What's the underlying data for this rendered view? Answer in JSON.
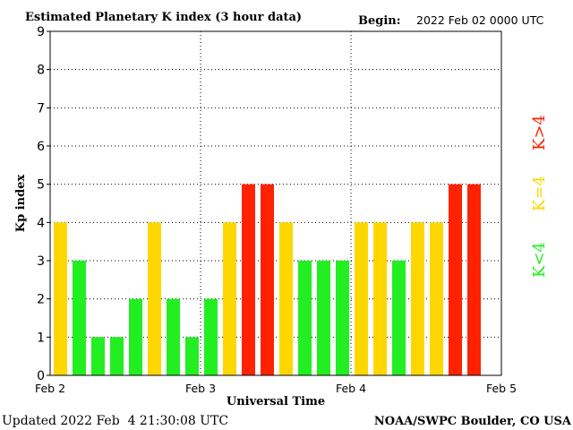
{
  "header": {
    "title": "Estimated Planetary K index (3 hour data)",
    "begin_label": "Begin:",
    "begin_value": "2022 Feb 02 0000 UTC"
  },
  "footer": {
    "updated": "Updated 2022 Feb  4 21:30:08 UTC",
    "source": "NOAA/SWPC Boulder, CO USA"
  },
  "legend": {
    "low": "K<4",
    "mid": "K=4",
    "high": "K>4"
  },
  "colors": {
    "low": "#22ee22",
    "mid": "#ffd700",
    "high": "#ff2200",
    "grid": "#000000"
  },
  "chart_data": {
    "type": "bar",
    "title": "Estimated Planetary K index (3 hour data)",
    "xlabel": "Universal Time",
    "ylabel": "Kp index",
    "ylim": [
      0,
      9
    ],
    "yticks": [
      "0",
      "1",
      "2",
      "3",
      "4",
      "5",
      "6",
      "7",
      "8",
      "9"
    ],
    "xticks": [
      "Feb 2",
      "Feb 3",
      "Feb 4",
      "Feb 5"
    ],
    "values": [
      4,
      3,
      1,
      1,
      2,
      4,
      2,
      1,
      2,
      4,
      5,
      5,
      4,
      3,
      3,
      3,
      4,
      4,
      3,
      4,
      4,
      5,
      5
    ],
    "bar_hours": 3,
    "grid": true
  }
}
